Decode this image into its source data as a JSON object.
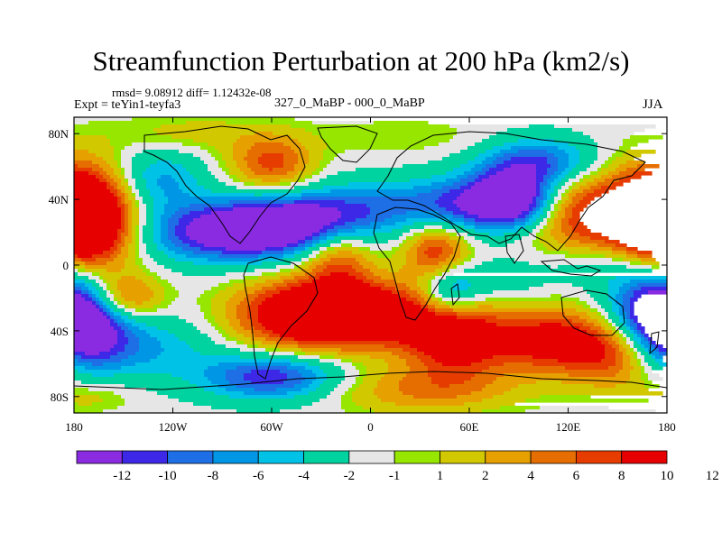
{
  "title": "Streamfunction Perturbation at 200 hPa (km2/s)",
  "stats_line": "rmsd= 9.08912 diff= 1.12432e-08",
  "experiment_line": "Expt = teYin1-teyfa3",
  "comparison_line": "327_0_MaBP - 000_0_MaBP",
  "season": "JJA",
  "chart_data": {
    "type": "heatmap",
    "projection": "cylindrical-equidistant",
    "variable": "Streamfunction Perturbation at 200 hPa",
    "units": "km2/s",
    "lon_range": [
      -180,
      180
    ],
    "lat_range": [
      -90,
      90
    ],
    "x_ticks": [
      {
        "value": -180,
        "label": "180"
      },
      {
        "value": -120,
        "label": "120W"
      },
      {
        "value": -60,
        "label": "60W"
      },
      {
        "value": 0,
        "label": "0"
      },
      {
        "value": 60,
        "label": "60E"
      },
      {
        "value": 120,
        "label": "120E"
      },
      {
        "value": 180,
        "label": "180"
      }
    ],
    "y_ticks": [
      {
        "value": 80,
        "label": "80N"
      },
      {
        "value": 40,
        "label": "40N"
      },
      {
        "value": 0,
        "label": "0"
      },
      {
        "value": -40,
        "label": "40S"
      },
      {
        "value": -80,
        "label": "80S"
      }
    ],
    "colorbar": {
      "placement": "bottom",
      "colors": [
        "#8a2be2",
        "#3c28e6",
        "#1e6ee6",
        "#0096e6",
        "#00c2e6",
        "#00d2a0",
        "#e6e6e6",
        "#96e600",
        "#d2c800",
        "#e6a000",
        "#e66e00",
        "#e63c00",
        "#e60000"
      ],
      "labels": [
        "-12",
        "-10",
        "-8",
        "-6",
        "-4",
        "-2",
        "-1",
        "1",
        "2",
        "4",
        "6",
        "8",
        "10",
        "12"
      ]
    },
    "anomalies": [
      {
        "lon": -168,
        "lat": 28,
        "amp": 15,
        "sx": 20,
        "sy": 22
      },
      {
        "lon": 168,
        "lat": 28,
        "amp": 14,
        "sx": 22,
        "sy": 22
      },
      {
        "lon": 122,
        "lat": 33,
        "amp": 10,
        "sx": 22,
        "sy": 18
      },
      {
        "lon": -86,
        "lat": 20,
        "amp": -14,
        "sx": 38,
        "sy": 13
      },
      {
        "lon": -50,
        "lat": 26,
        "amp": -10,
        "sx": 30,
        "sy": 12
      },
      {
        "lon": -12,
        "lat": 34,
        "amp": -6,
        "sx": 25,
        "sy": 12
      },
      {
        "lon": 58,
        "lat": 37,
        "amp": -11,
        "sx": 34,
        "sy": 12
      },
      {
        "lon": 88,
        "lat": 40,
        "amp": -13,
        "sx": 18,
        "sy": 12
      },
      {
        "lon": 102,
        "lat": 62,
        "amp": -11,
        "sx": 25,
        "sy": 11
      },
      {
        "lon": -130,
        "lat": 52,
        "amp": -7,
        "sx": 20,
        "sy": 13
      },
      {
        "lon": -60,
        "lat": 62,
        "amp": 9,
        "sx": 18,
        "sy": 12
      },
      {
        "lon": -110,
        "lat": 80,
        "amp": 3,
        "sx": 32,
        "sy": 8
      },
      {
        "lon": 20,
        "lat": 78,
        "amp": 2,
        "sx": 40,
        "sy": 8
      },
      {
        "lon": 40,
        "lat": 8,
        "amp": 10,
        "sx": 14,
        "sy": 13
      },
      {
        "lon": -20,
        "lat": 5,
        "amp": 8,
        "sx": 15,
        "sy": 14
      },
      {
        "lon": -42,
        "lat": -30,
        "amp": 14,
        "sx": 30,
        "sy": 15
      },
      {
        "lon": 0,
        "lat": -30,
        "amp": 13,
        "sx": 30,
        "sy": 14
      },
      {
        "lon": 52,
        "lat": -45,
        "amp": 13,
        "sx": 22,
        "sy": 16
      },
      {
        "lon": 110,
        "lat": -46,
        "amp": 12,
        "sx": 25,
        "sy": 14
      },
      {
        "lon": 150,
        "lat": -54,
        "amp": 9,
        "sx": 20,
        "sy": 15
      },
      {
        "lon": 48,
        "lat": -15,
        "amp": -9,
        "sx": 13,
        "sy": 11
      },
      {
        "lon": 170,
        "lat": -28,
        "amp": -13,
        "sx": 20,
        "sy": 20
      },
      {
        "lon": -172,
        "lat": -35,
        "amp": -12,
        "sx": 18,
        "sy": 18
      },
      {
        "lon": -150,
        "lat": -20,
        "amp": 9,
        "sx": 16,
        "sy": 10
      },
      {
        "lon": -138,
        "lat": -50,
        "amp": -6,
        "sx": 30,
        "sy": 14
      },
      {
        "lon": -60,
        "lat": -68,
        "amp": -12,
        "sx": 30,
        "sy": 10
      },
      {
        "lon": 30,
        "lat": -76,
        "amp": 6,
        "sx": 42,
        "sy": 10
      },
      {
        "lon": -170,
        "lat": -80,
        "amp": 3,
        "sx": 20,
        "sy": 7
      },
      {
        "lon": 80,
        "lat": -10,
        "amp": -3,
        "sx": 20,
        "sy": 10
      },
      {
        "lon": 140,
        "lat": 0,
        "amp": -4,
        "sx": 25,
        "sy": 10
      }
    ]
  }
}
